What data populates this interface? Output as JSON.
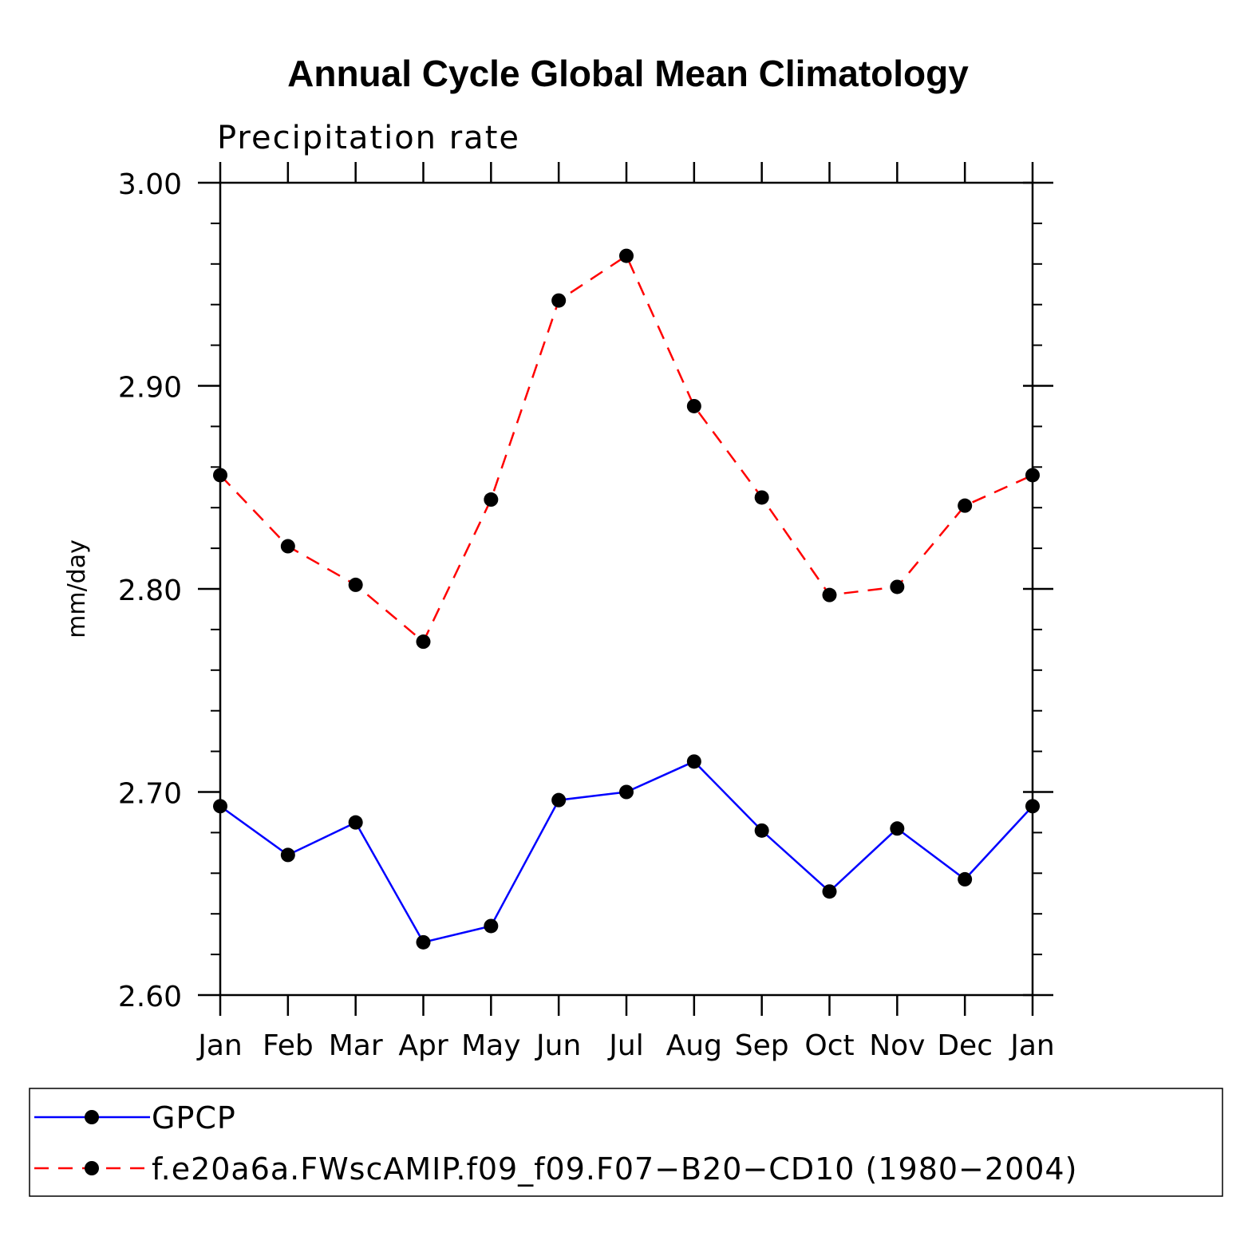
{
  "chart_data": {
    "type": "line",
    "title": "Annual Cycle Global Mean Climatology",
    "subtitle": "Precipitation rate",
    "xlabel": "",
    "ylabel": "mm/day",
    "categories": [
      "Jan",
      "Feb",
      "Mar",
      "Apr",
      "May",
      "Jun",
      "Jul",
      "Aug",
      "Sep",
      "Oct",
      "Nov",
      "Dec",
      "Jan"
    ],
    "ylim": [
      2.6,
      3.0
    ],
    "yticks": [
      "2.60",
      "2.70",
      "2.80",
      "2.90",
      "3.00"
    ],
    "ytick_values": [
      2.6,
      2.7,
      2.8,
      2.9,
      3.0
    ],
    "series": [
      {
        "name": "GPCP",
        "color": "#0000ff",
        "dash": "solid",
        "values": [
          2.693,
          2.669,
          2.685,
          2.626,
          2.634,
          2.696,
          2.7,
          2.715,
          2.681,
          2.651,
          2.682,
          2.657,
          2.693
        ]
      },
      {
        "name": "f.e20a6a.FWscAMIP.f09_f09.F07−B20−CD10 (1980−2004)",
        "color": "#ff0000",
        "dash": "dashed",
        "values": [
          2.856,
          2.821,
          2.802,
          2.774,
          2.844,
          2.942,
          2.964,
          2.89,
          2.845,
          2.797,
          2.801,
          2.841,
          2.856
        ]
      }
    ],
    "legend_position": "bottom",
    "marker_color": "#000000"
  }
}
